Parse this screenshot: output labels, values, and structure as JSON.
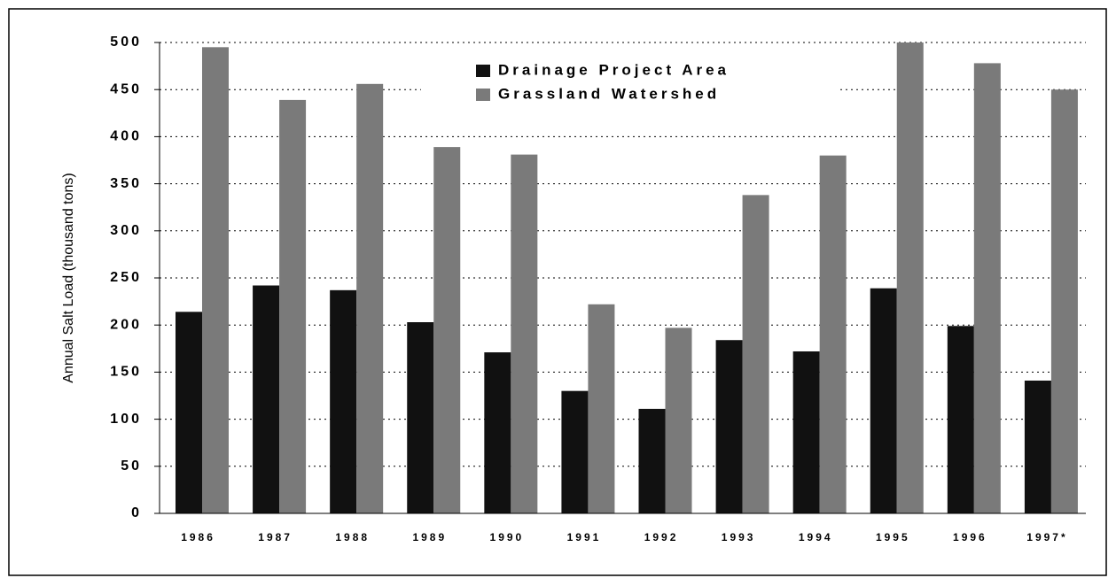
{
  "chart_data": {
    "type": "bar",
    "y_label": "Annual Salt Load (thousand tons)",
    "categories": [
      "1986",
      "1987",
      "1988",
      "1989",
      "1990",
      "1991",
      "1992",
      "1993",
      "1994",
      "1995",
      "1996",
      "1997*"
    ],
    "series": [
      {
        "name": "Drainage Project Area",
        "color": "#111111",
        "values": [
          214,
          242,
          237,
          203,
          171,
          130,
          111,
          184,
          172,
          239,
          199,
          141
        ]
      },
      {
        "name": "Grassland Watershed",
        "color": "#7a7a7a",
        "values": [
          495,
          439,
          456,
          389,
          381,
          222,
          197,
          338,
          380,
          500,
          478,
          450
        ]
      }
    ],
    "ylim": [
      0,
      500
    ],
    "yticks": [
      0,
      50,
      100,
      150,
      200,
      250,
      300,
      350,
      400,
      450,
      500
    ],
    "grid": true,
    "legend": "top"
  }
}
